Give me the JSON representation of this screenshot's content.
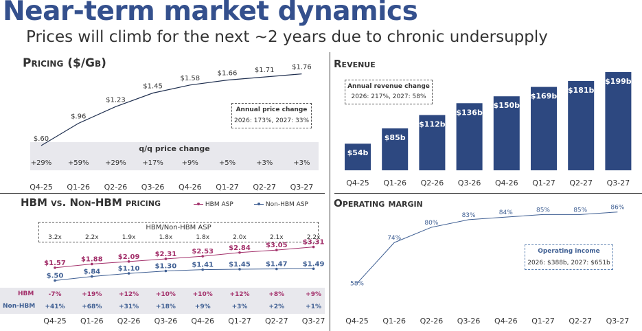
{
  "header": {
    "title": "Near-term market dynamics",
    "subtitle": "Prices will climb for the next ~2 years due to chronic undersupply"
  },
  "colors": {
    "navy": "#2d4880",
    "title_blue": "#34508d",
    "hbm": "#a3316b",
    "non_hbm": "#3f5f93",
    "band_gray": "#e8e8ed",
    "line_dark": "#1f2f4f"
  },
  "pricing_panel": {
    "title": "Pricing ($/Gb)",
    "box_title": "Annual price change",
    "box_text": "2026: 173%, 2027: 33%",
    "qq_title": "q/q price change"
  },
  "revenue_panel": {
    "title": "Revenue",
    "box_title": "Annual revenue change",
    "box_text": "2026: 217%, 2027: 58%"
  },
  "hbm_panel": {
    "title": "HBM vs. Non-HBM pricing",
    "legend_hbm": "HBM ASP",
    "legend_non_hbm": "Non-HBM ASP",
    "ratio_title": "HBM/Non-HBM ASP",
    "row_label_hbm": "HBM",
    "row_label_non_hbm": "Non-HBM"
  },
  "margin_panel": {
    "title": "Operating margin",
    "box_title": "Operating income",
    "box_text": "2026: $388b, 2027: $651b"
  },
  "chart_data": [
    {
      "id": "pricing",
      "type": "line",
      "title": "Pricing ($/Gb)",
      "categories": [
        "Q4-25",
        "Q1-26",
        "Q2-26",
        "Q3-26",
        "Q4-26",
        "Q1-27",
        "Q2-27",
        "Q3-27"
      ],
      "values": [
        0.6,
        0.96,
        1.23,
        1.45,
        1.58,
        1.66,
        1.71,
        1.76
      ],
      "data_labels": [
        "$.60",
        "$.96",
        "$1.23",
        "$1.45",
        "$1.58",
        "$1.66",
        "$1.71",
        "$1.76"
      ],
      "qq_change": [
        "+29%",
        "+59%",
        "+29%",
        "+17%",
        "+9%",
        "+5%",
        "+3%",
        "+3%"
      ],
      "ylim": [
        0.4,
        1.9
      ]
    },
    {
      "id": "revenue",
      "type": "bar",
      "title": "Revenue",
      "categories": [
        "Q4-25",
        "Q1-26",
        "Q2-26",
        "Q3-26",
        "Q4-26",
        "Q1-27",
        "Q2-27",
        "Q3-27"
      ],
      "values": [
        54,
        85,
        112,
        136,
        150,
        169,
        181,
        199
      ],
      "data_labels": [
        "$54b",
        "$85b",
        "$112b",
        "$136b",
        "$150b",
        "$169b",
        "$181b",
        "$199b"
      ],
      "unit": "$b",
      "ylim": [
        0,
        199
      ]
    },
    {
      "id": "hbm_vs_non_hbm",
      "type": "line",
      "title": "HBM vs. Non-HBM pricing",
      "categories": [
        "Q4-25",
        "Q1-26",
        "Q2-26",
        "Q3-26",
        "Q4-26",
        "Q1-27",
        "Q2-27",
        "Q3-27"
      ],
      "series": [
        {
          "name": "HBM ASP",
          "values": [
            1.57,
            1.88,
            2.09,
            2.31,
            2.53,
            2.84,
            3.05,
            3.31
          ],
          "data_labels": [
            "$1.57",
            "$1.88",
            "$2.09",
            "$2.31",
            "$2.53",
            "$2.84",
            "$3.05",
            "$3.31"
          ],
          "qq_change": [
            "-7%",
            "+19%",
            "+12%",
            "+10%",
            "+10%",
            "+12%",
            "+8%",
            "+9%"
          ]
        },
        {
          "name": "Non-HBM ASP",
          "values": [
            0.5,
            0.84,
            1.1,
            1.3,
            1.41,
            1.45,
            1.47,
            1.49
          ],
          "data_labels": [
            "$.50",
            "$.84",
            "$1.10",
            "$1.30",
            "$1.41",
            "$1.45",
            "$1.47",
            "$1.49"
          ],
          "qq_change": [
            "+41%",
            "+68%",
            "+31%",
            "+18%",
            "+9%",
            "+3%",
            "+2%",
            "+1%"
          ]
        }
      ],
      "ratio": [
        "3.2x",
        "2.2x",
        "1.9x",
        "1.8x",
        "1.8x",
        "2.0x",
        "2.1x",
        "2.2x"
      ],
      "ylim": [
        0.3,
        3.4
      ]
    },
    {
      "id": "operating_margin",
      "type": "line",
      "title": "Operating margin",
      "categories": [
        "Q4-25",
        "Q1-26",
        "Q2-26",
        "Q3-26",
        "Q4-26",
        "Q1-27",
        "Q2-27",
        "Q3-27"
      ],
      "values": [
        58,
        74,
        80,
        83,
        84,
        85,
        85,
        86
      ],
      "data_labels": [
        "58%",
        "74%",
        "80%",
        "83%",
        "84%",
        "85%",
        "85%",
        "86%"
      ],
      "unit": "%",
      "ylim": [
        56,
        87
      ]
    }
  ]
}
